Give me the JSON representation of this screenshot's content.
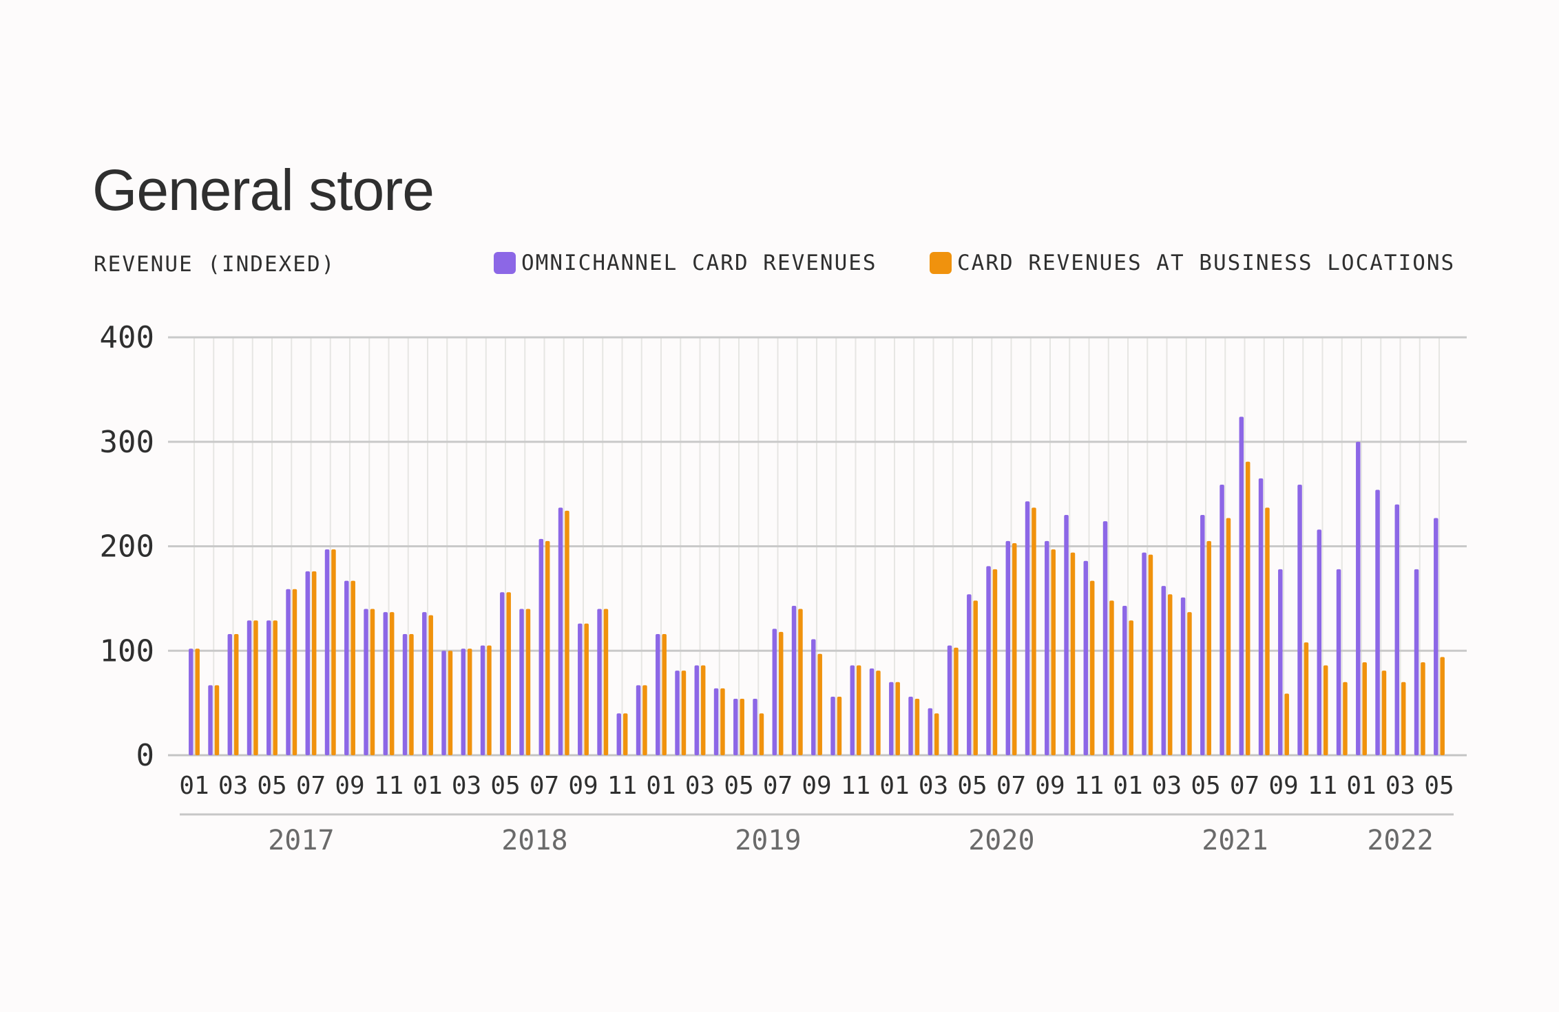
{
  "chart_data": {
    "type": "bar",
    "title": "General store",
    "ylabel": "REVENUE (INDEXED)",
    "ylim": [
      0,
      400
    ],
    "yticks": [
      0,
      100,
      200,
      300,
      400
    ],
    "grid": true,
    "legend_position": "top-right",
    "colors": {
      "omnichannel": "#8c67e6",
      "business": "#f0920d"
    },
    "categories": [
      "2017-01",
      "2017-02",
      "2017-03",
      "2017-04",
      "2017-05",
      "2017-06",
      "2017-07",
      "2017-08",
      "2017-09",
      "2017-10",
      "2017-11",
      "2017-12",
      "2018-01",
      "2018-02",
      "2018-03",
      "2018-04",
      "2018-05",
      "2018-06",
      "2018-07",
      "2018-08",
      "2018-09",
      "2018-10",
      "2018-11",
      "2018-12",
      "2019-01",
      "2019-02",
      "2019-03",
      "2019-04",
      "2019-05",
      "2019-06",
      "2019-07",
      "2019-08",
      "2019-09",
      "2019-10",
      "2019-11",
      "2019-12",
      "2020-01",
      "2020-02",
      "2020-03",
      "2020-04",
      "2020-05",
      "2020-06",
      "2020-07",
      "2020-08",
      "2020-09",
      "2020-10",
      "2020-11",
      "2020-12",
      "2021-01",
      "2021-02",
      "2021-03",
      "2021-04",
      "2021-05",
      "2021-06",
      "2021-07",
      "2021-08",
      "2021-09",
      "2021-10",
      "2021-11",
      "2021-12",
      "2022-01",
      "2022-02",
      "2022-03",
      "2022-04",
      "2022-05"
    ],
    "x_tick_labels": [
      "01",
      "03",
      "05",
      "07",
      "09",
      "11",
      "01",
      "03",
      "05",
      "07",
      "09",
      "11",
      "01",
      "03",
      "05",
      "07",
      "09",
      "11",
      "01",
      "03",
      "05",
      "07",
      "09",
      "11",
      "01",
      "03",
      "05",
      "07",
      "09",
      "11",
      "01",
      "03",
      "05"
    ],
    "year_labels": [
      "2017",
      "2018",
      "2019",
      "2020",
      "2021",
      "2022"
    ],
    "series": [
      {
        "name": "OMNICHANNEL CARD REVENUES",
        "values": [
          102,
          67,
          116,
          129,
          129,
          159,
          176,
          197,
          167,
          140,
          137,
          116,
          137,
          100,
          102,
          105,
          156,
          140,
          207,
          237,
          126,
          140,
          40,
          67,
          116,
          81,
          86,
          64,
          54,
          54,
          121,
          143,
          111,
          56,
          86,
          83,
          70,
          56,
          45,
          105,
          154,
          181,
          205,
          243,
          205,
          230,
          186,
          224,
          143,
          194,
          162,
          151,
          230,
          259,
          324,
          265,
          178,
          259,
          216,
          178,
          300,
          254,
          240,
          178,
          227
        ],
        "color": "#8c67e6"
      },
      {
        "name": "CARD REVENUES AT BUSINESS LOCATIONS",
        "values": [
          102,
          67,
          116,
          129,
          129,
          159,
          176,
          197,
          167,
          140,
          137,
          116,
          134,
          100,
          102,
          105,
          156,
          140,
          205,
          234,
          126,
          140,
          40,
          67,
          116,
          81,
          86,
          64,
          54,
          40,
          118,
          140,
          97,
          56,
          86,
          81,
          70,
          54,
          40,
          103,
          148,
          178,
          203,
          237,
          197,
          194,
          167,
          148,
          129,
          192,
          154,
          137,
          205,
          227,
          281,
          237,
          59,
          108,
          86,
          70,
          89,
          81,
          70,
          89,
          94
        ],
        "color": "#f0920d"
      }
    ]
  }
}
